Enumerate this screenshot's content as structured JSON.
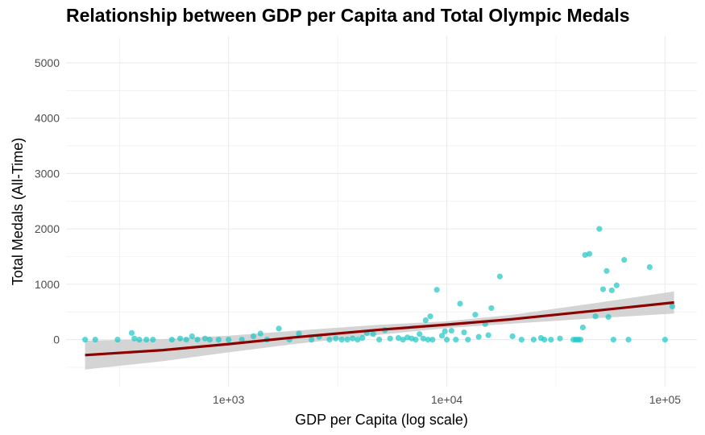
{
  "chart_data": {
    "type": "scatter",
    "title": "Relationship between GDP per Capita and Total Olympic Medals",
    "xlabel": "GDP per Capita (log scale)",
    "ylabel": "Total Medals (All-Time)",
    "x_scale": "log10",
    "xlim": [
      180,
      140000
    ],
    "ylim": [
      -850,
      5480
    ],
    "x_ticks": [
      1000,
      10000,
      100000
    ],
    "x_tick_labels": [
      "1e+03",
      "1e+04",
      "1e+05"
    ],
    "y_ticks": [
      0,
      1000,
      2000,
      3000,
      4000,
      5000
    ],
    "y_tick_labels": [
      "0",
      "1000",
      "2000",
      "3000",
      "4000",
      "5000"
    ],
    "grid": true,
    "colors": {
      "points": "#1CC6C6",
      "trend": "#8B0000",
      "band": "#cccccc",
      "grid": "#ebebeb"
    },
    "series": [
      {
        "x": [
          220,
          245,
          310,
          360,
          370,
          390,
          420,
          450,
          550,
          600,
          640,
          680,
          720,
          780,
          820,
          900,
          1000,
          1150,
          1300,
          1400,
          1500,
          1700,
          1900,
          2100,
          2400,
          2600,
          2900,
          3100,
          3300,
          3500,
          3700,
          3900,
          4100,
          4300,
          4600,
          4900,
          5200,
          5500,
          6000,
          6300,
          6600,
          6900,
          7200,
          7500,
          7800,
          8000,
          8200,
          8400,
          8600,
          9000,
          9500,
          9800,
          10000,
          10500,
          11000,
          11500,
          12000,
          12500,
          13500,
          14000,
          15000,
          15500,
          16000,
          17500,
          20000,
          22000,
          25000,
          27000,
          28000,
          30000,
          33000,
          38000,
          39000,
          40000,
          41000,
          42000,
          43000,
          45000,
          48000,
          50000,
          52000,
          54000,
          55000,
          57000,
          58000,
          60000,
          65000,
          68000,
          85000,
          100000,
          108000
        ],
        "y": [
          0,
          0,
          0,
          120,
          20,
          0,
          0,
          0,
          0,
          20,
          0,
          60,
          0,
          20,
          0,
          0,
          0,
          0,
          60,
          110,
          0,
          200,
          0,
          110,
          0,
          50,
          0,
          20,
          0,
          0,
          20,
          0,
          30,
          120,
          100,
          0,
          170,
          20,
          30,
          0,
          40,
          20,
          0,
          100,
          20,
          350,
          0,
          420,
          0,
          900,
          70,
          150,
          0,
          160,
          0,
          650,
          130,
          0,
          450,
          50,
          280,
          80,
          570,
          1140,
          60,
          0,
          0,
          30,
          0,
          0,
          20,
          0,
          0,
          0,
          0,
          220,
          1530,
          1550,
          420,
          2000,
          910,
          1240,
          410,
          890,
          0,
          980,
          1440,
          0,
          1310,
          0,
          600
        ],
        "trend": {
          "x": [
            220,
            500,
            1000,
            2000,
            5000,
            10000,
            20000,
            50000,
            110000
          ],
          "y": [
            -280,
            -190,
            -80,
            40,
            180,
            270,
            370,
            530,
            670
          ],
          "lower": [
            -540,
            -390,
            -230,
            -80,
            90,
            210,
            290,
            390,
            470
          ],
          "upper": [
            -20,
            10,
            70,
            160,
            270,
            330,
            450,
            670,
            870
          ]
        }
      }
    ]
  }
}
